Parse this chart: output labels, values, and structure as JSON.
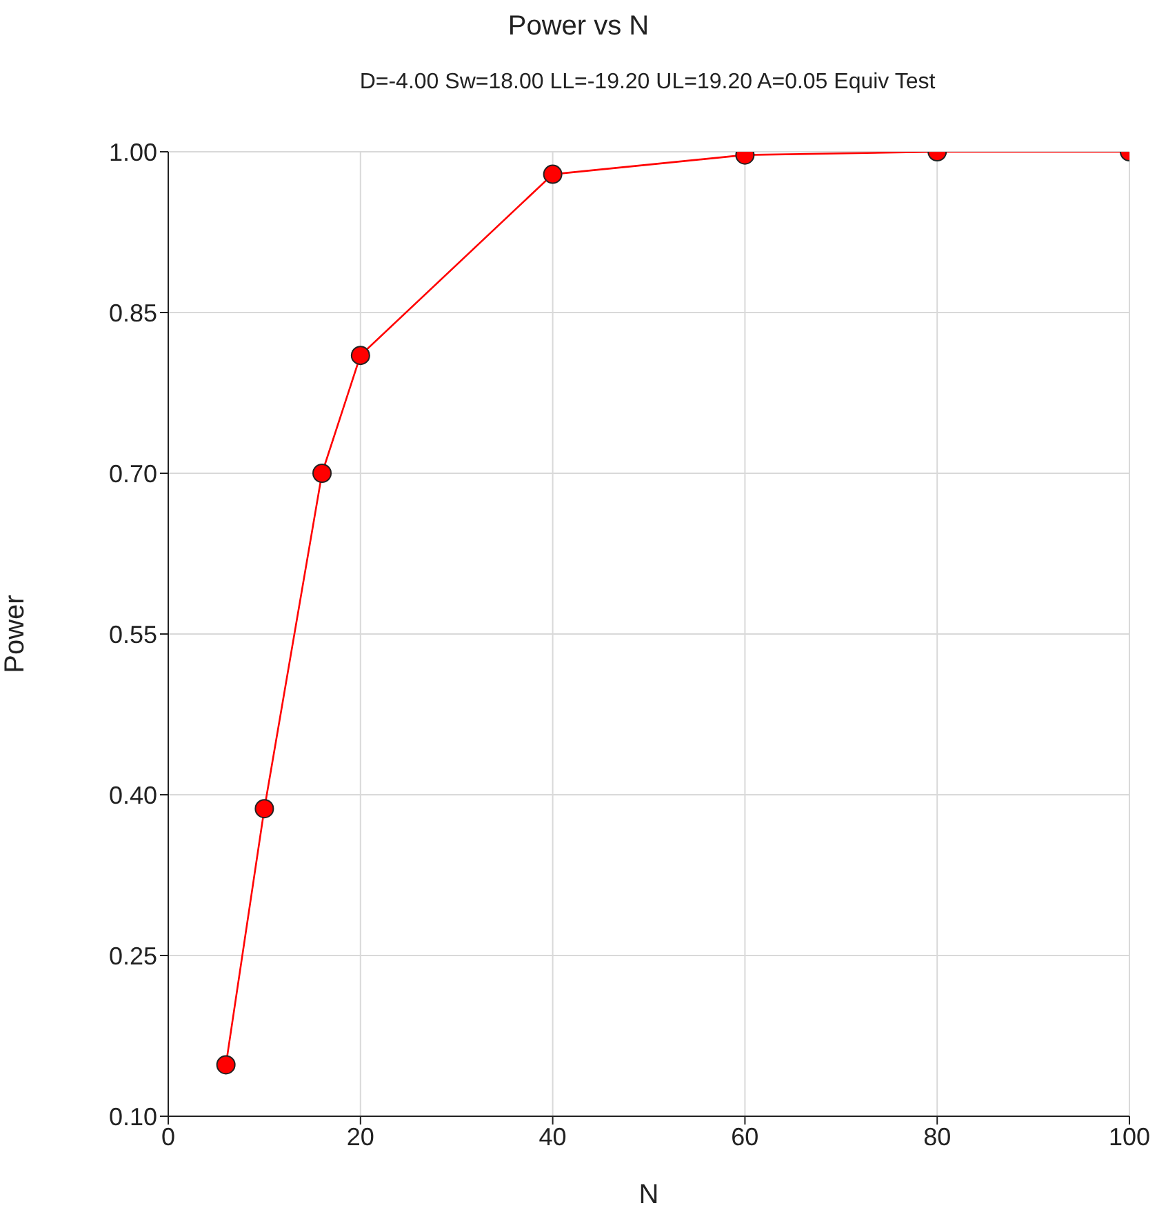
{
  "chart_data": {
    "type": "line",
    "title": "Power vs N",
    "subtitle": "D=-4.00 Sw=18.00 LL=-19.20 UL=19.20 A=0.05 Equiv Test",
    "xlabel": "N",
    "ylabel": "Power",
    "x": [
      6,
      10,
      16,
      20,
      40,
      60,
      80,
      100
    ],
    "series": [
      {
        "color": "#ff0000",
        "values": [
          0.148,
          0.387,
          0.7,
          0.81,
          0.979,
          0.997,
          1.0,
          1.0
        ]
      }
    ],
    "xlim": [
      0,
      100
    ],
    "xticks": [
      0,
      20,
      40,
      60,
      80,
      100
    ],
    "ylim": [
      0.1,
      1.0
    ],
    "yticks": [
      {
        "value": 0.1,
        "label": "0.10"
      },
      {
        "value": 0.25,
        "label": "0.25"
      },
      {
        "value": 0.4,
        "label": "0.40"
      },
      {
        "value": 0.55,
        "label": "0.55"
      },
      {
        "value": 0.7,
        "label": "0.70"
      },
      {
        "value": 0.85,
        "label": "0.85"
      },
      {
        "value": 1.0,
        "label": "1.00"
      }
    ],
    "grid": true,
    "legend": false,
    "marker": "circle",
    "line_style": "solid"
  }
}
